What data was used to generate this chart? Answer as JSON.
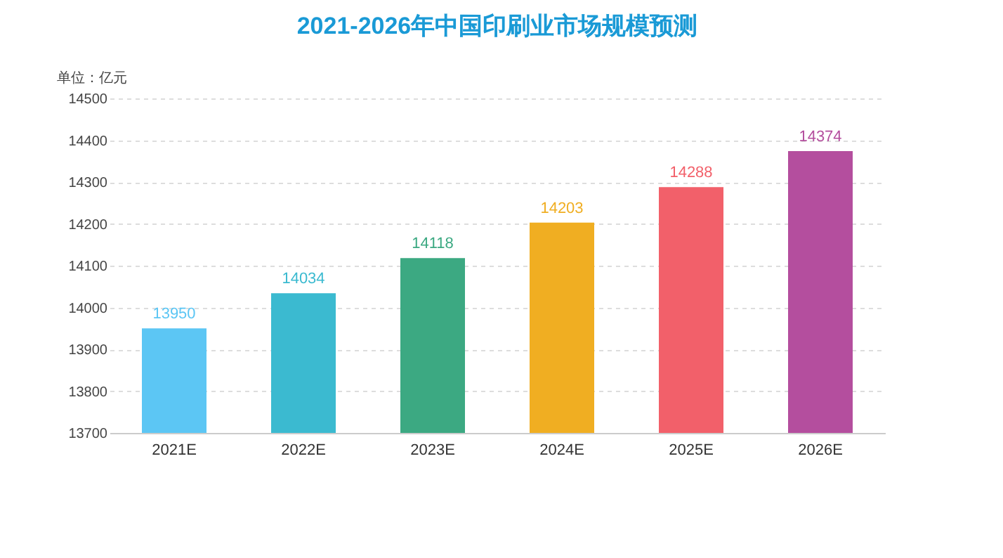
{
  "chart_data": {
    "type": "bar",
    "title": "2021-2026年中国印刷业市场规模预测",
    "ylabel": "单位：亿元",
    "categories": [
      "2021E",
      "2022E",
      "2023E",
      "2024E",
      "2025E",
      "2026E"
    ],
    "values": [
      13950,
      14034,
      14118,
      14203,
      14288,
      14374
    ],
    "colors": [
      "#5cc6f4",
      "#3bbad0",
      "#3ca982",
      "#f0ae22",
      "#f2606a",
      "#b44e9e"
    ],
    "ylim": [
      13700,
      14500
    ],
    "yticks": [
      13700,
      13800,
      13900,
      14000,
      14100,
      14200,
      14300,
      14400,
      14500
    ],
    "grid": "y",
    "data_labels": true
  }
}
